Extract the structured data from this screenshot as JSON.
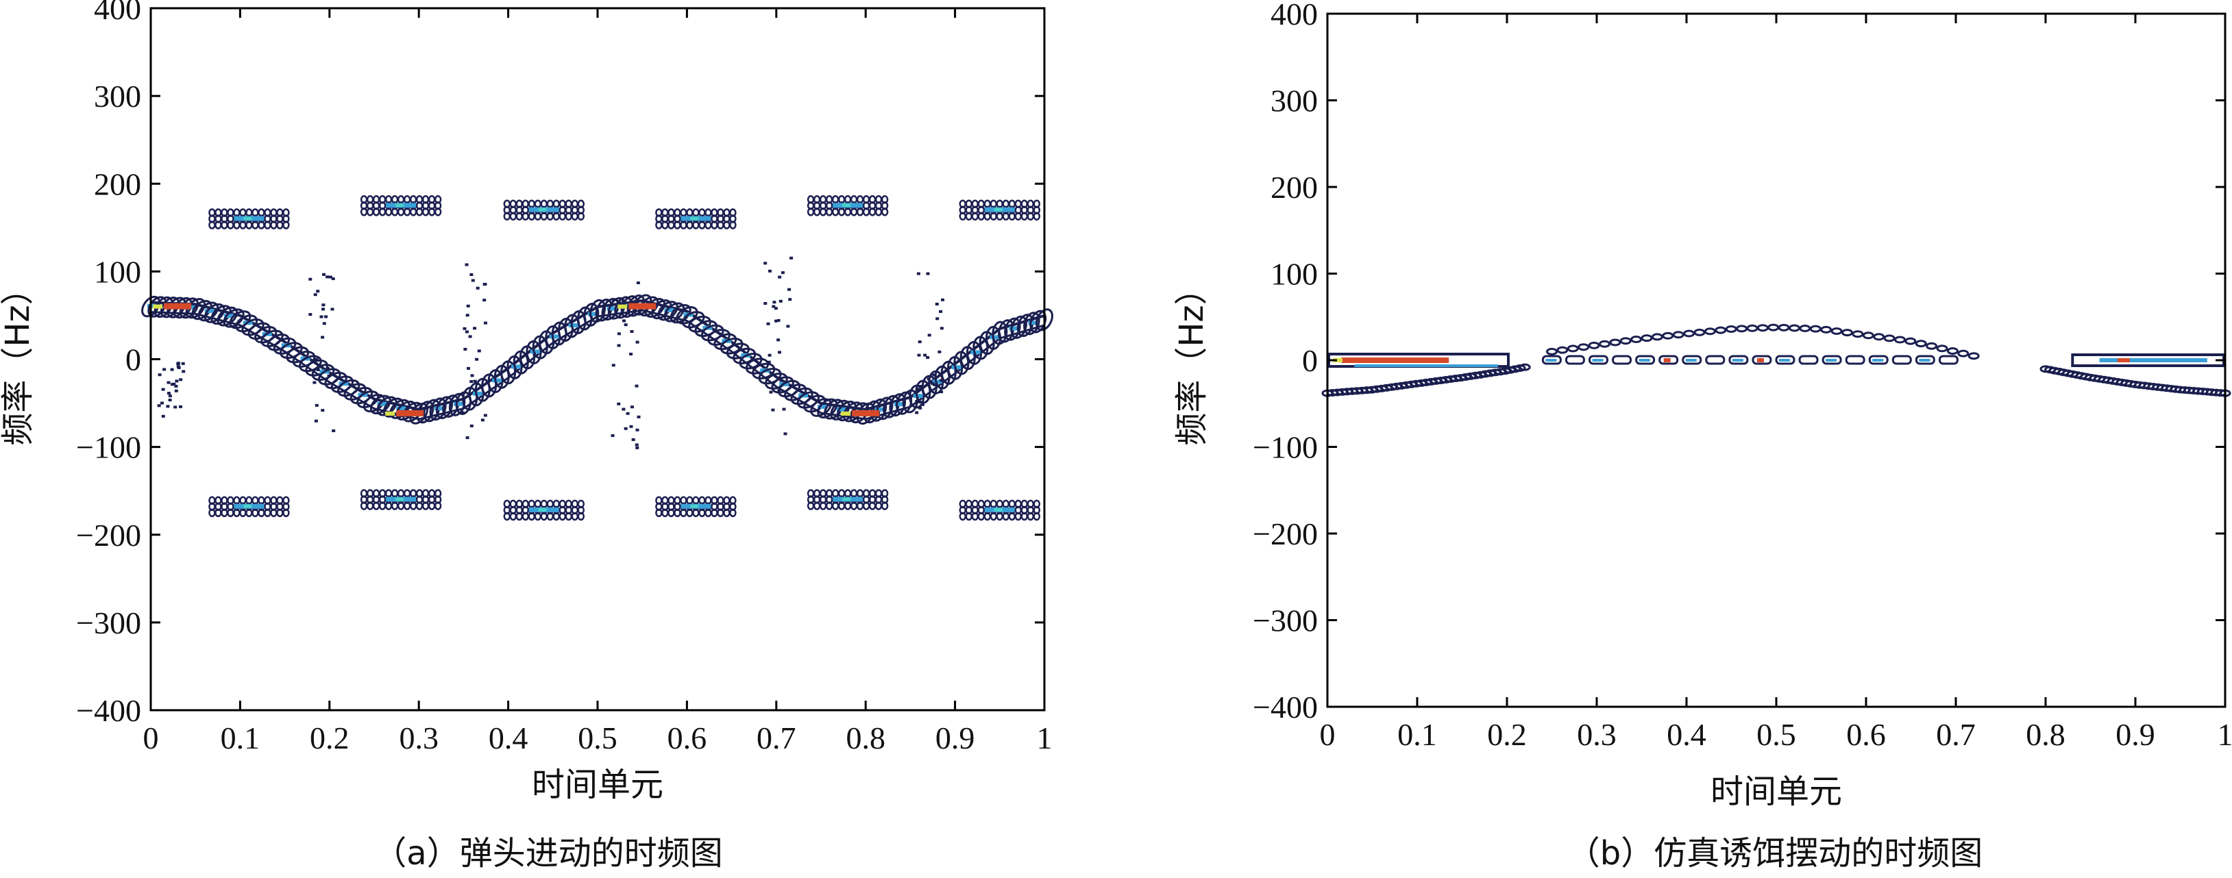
{
  "chart_data": [
    {
      "type": "contour",
      "panel": "a",
      "caption": "（a）弹头进动的时频图",
      "xlabel": "时间单元",
      "ylabel": "频率（Hz）",
      "xlim": [
        0,
        1
      ],
      "ylim": [
        -400,
        400
      ],
      "xticks": [
        "0",
        "0.1",
        "0.2",
        "0.3",
        "0.4",
        "0.5",
        "0.6",
        "0.7",
        "0.8",
        "0.9",
        "1"
      ],
      "yticks": [
        "400",
        "300",
        "200",
        "100",
        "0",
        "−100",
        "−200",
        "−300",
        "−400"
      ],
      "colors": [
        "#1b1f4f",
        "#3aa0d8",
        "#49d0c8",
        "#d8e04a",
        "#d64a2a"
      ],
      "main_curve": {
        "description_values": "sinusoidal micro-Doppler, amplitude ~62 Hz, period ~0.5",
        "x": [
          0,
          0.05,
          0.1,
          0.15,
          0.2,
          0.25,
          0.3,
          0.35,
          0.4,
          0.45,
          0.5,
          0.55,
          0.6,
          0.65,
          0.7,
          0.75,
          0.8,
          0.85,
          0.9,
          0.95,
          1
        ],
        "y": [
          60,
          58,
          45,
          15,
          -20,
          -50,
          -62,
          -50,
          -15,
          25,
          55,
          62,
          50,
          15,
          -25,
          -55,
          -62,
          -48,
          -10,
          30,
          45
        ]
      },
      "sidebands": [
        {
          "x": 0.11,
          "y": 160
        },
        {
          "x": 0.28,
          "y": 175
        },
        {
          "x": 0.44,
          "y": 170
        },
        {
          "x": 0.61,
          "y": 160
        },
        {
          "x": 0.78,
          "y": 175
        },
        {
          "x": 0.95,
          "y": 170
        },
        {
          "x": 0.11,
          "y": -168
        },
        {
          "x": 0.28,
          "y": -160
        },
        {
          "x": 0.44,
          "y": -172
        },
        {
          "x": 0.61,
          "y": -168
        },
        {
          "x": 0.78,
          "y": -160
        },
        {
          "x": 0.95,
          "y": -172
        }
      ],
      "scatter_columns": [
        {
          "x": 0.19,
          "y_range": [
            -80,
            110
          ]
        },
        {
          "x": 0.36,
          "y_range": [
            -90,
            110
          ]
        },
        {
          "x": 0.53,
          "y_range": [
            -100,
            90
          ]
        },
        {
          "x": 0.7,
          "y_range": [
            -100,
            120
          ]
        },
        {
          "x": 0.87,
          "y_range": [
            -60,
            100
          ]
        },
        {
          "x": 0.02,
          "y_range": [
            -80,
            0
          ]
        }
      ]
    },
    {
      "type": "contour",
      "panel": "b",
      "caption": "（b）仿真诱饵摆动的时频图",
      "xlabel": "时间单元",
      "ylabel": "频率（Hz）",
      "xlim": [
        0,
        1
      ],
      "ylim": [
        -400,
        400
      ],
      "xticks": [
        "0",
        "0.1",
        "0.2",
        "0.3",
        "0.4",
        "0.5",
        "0.6",
        "0.7",
        "0.8",
        "0.9",
        "1"
      ],
      "yticks": [
        "400",
        "300",
        "200",
        "100",
        "0",
        "−100",
        "−200",
        "−300",
        "−400"
      ],
      "colors": [
        "#1b1f4f",
        "#3aa0d8",
        "#49d0c8",
        "#d8e04a",
        "#d64a2a"
      ],
      "center_band": {
        "y": 0
      },
      "upper_arc": {
        "x": [
          0.25,
          0.35,
          0.45,
          0.5,
          0.55,
          0.65,
          0.72
        ],
        "y": [
          10,
          25,
          36,
          38,
          36,
          22,
          5
        ]
      },
      "lower_left": {
        "x": [
          0,
          0.05,
          0.1,
          0.15,
          0.2,
          0.22
        ],
        "y": [
          -38,
          -34,
          -27,
          -20,
          -12,
          -8
        ]
      },
      "lower_right": {
        "x": [
          0.8,
          0.85,
          0.9,
          0.95,
          1
        ],
        "y": [
          -10,
          -20,
          -28,
          -34,
          -38
        ]
      }
    }
  ]
}
